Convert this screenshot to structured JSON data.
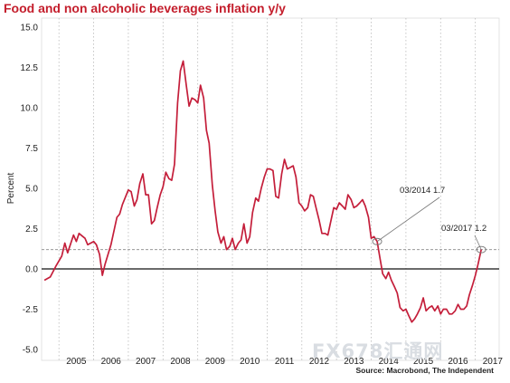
{
  "chart_data": {
    "type": "line",
    "title": "Food and non alcoholic beverages inflation y/y",
    "ylabel": "Percent",
    "xlabel": "",
    "source": "Source: Macrobond, The Independent",
    "watermark": "FX678汇通网",
    "ylim": [
      -5.0,
      15.0
    ],
    "xlim": [
      2004.5,
      2017.4
    ],
    "y_ticks": [
      {
        "value": 15.0,
        "label": "15.0"
      },
      {
        "value": 12.5,
        "label": "12.5"
      },
      {
        "value": 10.0,
        "label": "10.0"
      },
      {
        "value": 7.5,
        "label": "7.5"
      },
      {
        "value": 5.0,
        "label": "5.0"
      },
      {
        "value": 2.5,
        "label": "2.5"
      },
      {
        "value": 0.0,
        "label": "0.0"
      },
      {
        "value": -2.5,
        "label": "-2.5"
      },
      {
        "value": -5.0,
        "label": "-5.0"
      }
    ],
    "x_ticks": [
      {
        "value": 2005.5,
        "label": "2005"
      },
      {
        "value": 2006.5,
        "label": "2006"
      },
      {
        "value": 2007.5,
        "label": "2007"
      },
      {
        "value": 2008.5,
        "label": "2008"
      },
      {
        "value": 2009.5,
        "label": "2009"
      },
      {
        "value": 2010.5,
        "label": "2010"
      },
      {
        "value": 2011.5,
        "label": "2011"
      },
      {
        "value": 2012.5,
        "label": "2012"
      },
      {
        "value": 2013.5,
        "label": "2013"
      },
      {
        "value": 2014.5,
        "label": "2014"
      },
      {
        "value": 2015.5,
        "label": "2015"
      },
      {
        "value": 2016.5,
        "label": "2016"
      },
      {
        "value": 2017.5,
        "label": "2017"
      }
    ],
    "grid": {
      "vertical": true,
      "horizontal": false
    },
    "line_color": "#c41e3a",
    "zero_line": 0.0,
    "reference_line": {
      "value": 1.2,
      "style": "dashed"
    },
    "annotations": [
      {
        "text": "03/2014 1.7",
        "x": 2014.17,
        "y": 1.7
      },
      {
        "text": "03/2017 1.2",
        "x": 2017.17,
        "y": 1.2
      }
    ],
    "series": [
      {
        "values": [
          [
            2004.58,
            -0.7
          ],
          [
            2004.75,
            -0.5
          ],
          [
            2004.92,
            0.2
          ],
          [
            2005.08,
            0.8
          ],
          [
            2005.17,
            1.6
          ],
          [
            2005.25,
            1.0
          ],
          [
            2005.42,
            2.1
          ],
          [
            2005.5,
            1.7
          ],
          [
            2005.58,
            2.2
          ],
          [
            2005.75,
            1.9
          ],
          [
            2005.83,
            1.5
          ],
          [
            2006.0,
            1.7
          ],
          [
            2006.08,
            1.5
          ],
          [
            2006.17,
            0.9
          ],
          [
            2006.25,
            -0.4
          ],
          [
            2006.33,
            0.3
          ],
          [
            2006.5,
            1.5
          ],
          [
            2006.67,
            3.2
          ],
          [
            2006.75,
            3.4
          ],
          [
            2006.83,
            4.0
          ],
          [
            2007.0,
            4.9
          ],
          [
            2007.08,
            4.8
          ],
          [
            2007.17,
            3.9
          ],
          [
            2007.25,
            4.3
          ],
          [
            2007.33,
            5.3
          ],
          [
            2007.42,
            5.9
          ],
          [
            2007.5,
            4.6
          ],
          [
            2007.58,
            4.6
          ],
          [
            2007.67,
            2.8
          ],
          [
            2007.75,
            3.0
          ],
          [
            2007.83,
            3.8
          ],
          [
            2007.92,
            4.6
          ],
          [
            2008.0,
            5.1
          ],
          [
            2008.08,
            6.0
          ],
          [
            2008.17,
            5.6
          ],
          [
            2008.25,
            5.5
          ],
          [
            2008.33,
            6.5
          ],
          [
            2008.42,
            10.3
          ],
          [
            2008.5,
            12.3
          ],
          [
            2008.58,
            12.9
          ],
          [
            2008.67,
            11.4
          ],
          [
            2008.75,
            10.1
          ],
          [
            2008.83,
            10.6
          ],
          [
            2008.92,
            10.5
          ],
          [
            2009.0,
            10.3
          ],
          [
            2009.08,
            11.4
          ],
          [
            2009.17,
            10.6
          ],
          [
            2009.25,
            8.6
          ],
          [
            2009.33,
            7.8
          ],
          [
            2009.42,
            5.2
          ],
          [
            2009.5,
            3.6
          ],
          [
            2009.58,
            2.3
          ],
          [
            2009.67,
            1.6
          ],
          [
            2009.75,
            2.0
          ],
          [
            2009.83,
            1.2
          ],
          [
            2009.92,
            1.4
          ],
          [
            2010.0,
            1.9
          ],
          [
            2010.08,
            1.2
          ],
          [
            2010.17,
            1.6
          ],
          [
            2010.25,
            1.8
          ],
          [
            2010.33,
            2.8
          ],
          [
            2010.42,
            1.6
          ],
          [
            2010.5,
            2.0
          ],
          [
            2010.58,
            3.5
          ],
          [
            2010.67,
            4.4
          ],
          [
            2010.75,
            4.2
          ],
          [
            2010.83,
            5.0
          ],
          [
            2010.92,
            5.7
          ],
          [
            2011.0,
            6.2
          ],
          [
            2011.08,
            6.2
          ],
          [
            2011.17,
            6.1
          ],
          [
            2011.25,
            4.5
          ],
          [
            2011.33,
            4.4
          ],
          [
            2011.42,
            5.9
          ],
          [
            2011.5,
            6.8
          ],
          [
            2011.58,
            6.2
          ],
          [
            2011.67,
            6.3
          ],
          [
            2011.75,
            6.4
          ],
          [
            2011.83,
            5.7
          ],
          [
            2011.92,
            4.1
          ],
          [
            2012.0,
            3.9
          ],
          [
            2012.08,
            3.6
          ],
          [
            2012.17,
            3.8
          ],
          [
            2012.25,
            4.6
          ],
          [
            2012.33,
            4.5
          ],
          [
            2012.42,
            3.7
          ],
          [
            2012.5,
            3.0
          ],
          [
            2012.58,
            2.2
          ],
          [
            2012.67,
            2.2
          ],
          [
            2012.75,
            2.1
          ],
          [
            2012.83,
            2.9
          ],
          [
            2012.92,
            3.8
          ],
          [
            2013.0,
            3.7
          ],
          [
            2013.08,
            4.1
          ],
          [
            2013.17,
            3.9
          ],
          [
            2013.25,
            3.7
          ],
          [
            2013.33,
            4.6
          ],
          [
            2013.42,
            4.3
          ],
          [
            2013.5,
            3.8
          ],
          [
            2013.58,
            3.9
          ],
          [
            2013.67,
            4.1
          ],
          [
            2013.75,
            4.3
          ],
          [
            2013.83,
            3.9
          ],
          [
            2013.92,
            3.2
          ],
          [
            2014.0,
            1.9
          ],
          [
            2014.08,
            2.0
          ],
          [
            2014.17,
            1.7
          ],
          [
            2014.25,
            0.7
          ],
          [
            2014.33,
            -0.3
          ],
          [
            2014.42,
            -0.6
          ],
          [
            2014.5,
            -0.2
          ],
          [
            2014.58,
            -0.7
          ],
          [
            2014.67,
            -1.1
          ],
          [
            2014.75,
            -1.5
          ],
          [
            2014.83,
            -2.4
          ],
          [
            2014.92,
            -2.6
          ],
          [
            2015.0,
            -2.5
          ],
          [
            2015.08,
            -2.9
          ],
          [
            2015.17,
            -3.3
          ],
          [
            2015.25,
            -3.1
          ],
          [
            2015.33,
            -2.8
          ],
          [
            2015.42,
            -2.4
          ],
          [
            2015.5,
            -1.8
          ],
          [
            2015.58,
            -2.6
          ],
          [
            2015.67,
            -2.4
          ],
          [
            2015.75,
            -2.3
          ],
          [
            2015.83,
            -2.6
          ],
          [
            2015.92,
            -2.3
          ],
          [
            2016.0,
            -2.8
          ],
          [
            2016.08,
            -2.5
          ],
          [
            2016.17,
            -2.5
          ],
          [
            2016.25,
            -2.8
          ],
          [
            2016.33,
            -2.8
          ],
          [
            2016.42,
            -2.6
          ],
          [
            2016.5,
            -2.2
          ],
          [
            2016.58,
            -2.5
          ],
          [
            2016.67,
            -2.5
          ],
          [
            2016.75,
            -2.3
          ],
          [
            2016.83,
            -1.6
          ],
          [
            2016.92,
            -1.0
          ],
          [
            2017.0,
            -0.4
          ],
          [
            2017.08,
            0.3
          ],
          [
            2017.17,
            1.2
          ]
        ]
      }
    ]
  }
}
